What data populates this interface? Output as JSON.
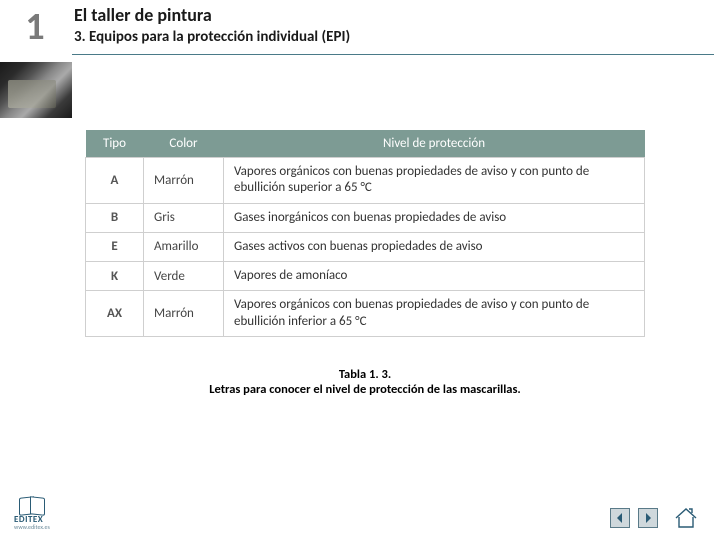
{
  "header": {
    "unit_number": "1",
    "title": "El taller de pintura",
    "subtitle": "3. Equipos para la protección individual (EPI)"
  },
  "table": {
    "type": "table",
    "header_bg": "#7d9b94",
    "header_fg": "#ffffff",
    "cell_border": "#cfcfcf",
    "columns": [
      "Tipo",
      "Color",
      "Nivel de protección"
    ],
    "rows": [
      [
        "A",
        "Marrón",
        "Vapores orgánicos con buenas propiedades de aviso y con punto de ebullición superior a 65 °C"
      ],
      [
        "B",
        "Gris",
        "Gases inorgánicos con buenas propiedades de aviso"
      ],
      [
        "E",
        "Amarillo",
        "Gases activos con buenas propiedades de aviso"
      ],
      [
        "K",
        "Verde",
        "Vapores de amoníaco"
      ],
      [
        "AX",
        "Marrón",
        "Vapores orgánicos con buenas propiedades de aviso y con punto de ebullición inferior a 65 °C"
      ]
    ]
  },
  "caption": {
    "title": "Tabla 1. 3.",
    "text": "Letras para conocer el nivel de protección de las mascarillas."
  },
  "logo": {
    "text": "EDITEX",
    "url": "www.editex.es"
  }
}
